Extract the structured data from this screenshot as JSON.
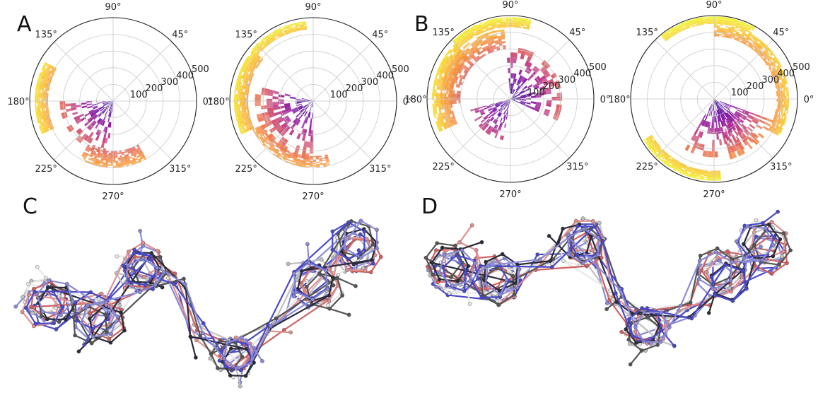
{
  "figure": {
    "panels": {
      "A": {
        "label": "A"
      },
      "B": {
        "label": "B"
      },
      "C": {
        "label": "C"
      },
      "D": {
        "label": "D"
      }
    }
  },
  "polar_axes": {
    "angle_ticks": [
      "0°",
      "45°",
      "90°",
      "135°",
      "180°",
      "225°",
      "270°",
      "315°"
    ],
    "radial_ticks": [
      "100",
      "200",
      "300",
      "400",
      "500"
    ],
    "radial_values": [
      100,
      200,
      300,
      400,
      500
    ],
    "r_max": 500
  },
  "colors": {
    "colormap": [
      "#2a0c8a",
      "#6a00a8",
      "#b12a90",
      "#e16462",
      "#fca636",
      "#f0f921"
    ],
    "grid": "#c8c8c8",
    "frame": "#222222",
    "molecule_palette": [
      "#4a4ac8",
      "#8a8ad8",
      "#c0c0c0",
      "#e8e8e8",
      "#d06060",
      "#e09090",
      "#555555",
      "#2a2a3a"
    ]
  },
  "polar_plots": [
    {
      "panel": "A",
      "index": 0
    },
    {
      "panel": "A",
      "index": 1
    },
    {
      "panel": "B",
      "index": 0
    },
    {
      "panel": "B",
      "index": 1
    }
  ]
}
